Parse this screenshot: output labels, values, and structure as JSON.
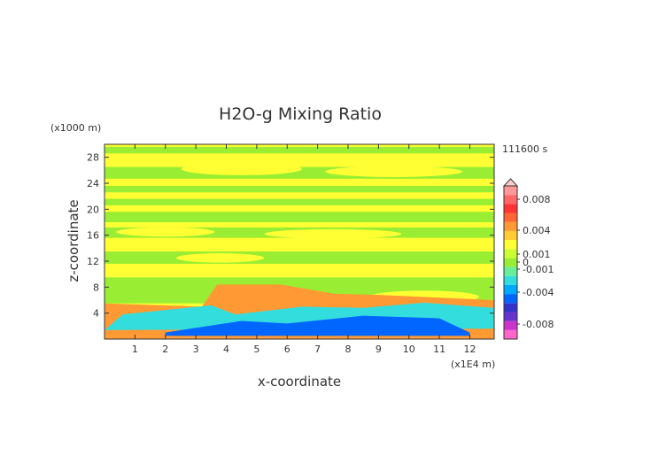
{
  "chart_data": {
    "type": "heatmap",
    "title": "H2O-g Mixing Ratio",
    "xlabel": "x-coordinate",
    "ylabel": "z-coordinate",
    "x_unit": "(x1E4 m)",
    "y_unit": "(x1000 m)",
    "time_label": "111600 s",
    "xlim": [
      0,
      12.8
    ],
    "ylim": [
      0,
      30
    ],
    "x_ticks": [
      "1",
      "2",
      "3",
      "4",
      "5",
      "6",
      "7",
      "8",
      "9",
      "10",
      "11",
      "12"
    ],
    "y_ticks": [
      "4",
      "8",
      "12",
      "16",
      "20",
      "24",
      "28"
    ],
    "colorbar": {
      "labels": [
        "0.008",
        "0.004",
        "0.001",
        "0",
        "-0.001",
        "-0.004",
        "-0.008"
      ],
      "colors": [
        "#ff66cc",
        "#cc33cc",
        "#6633cc",
        "#3333cc",
        "#0066ff",
        "#00aaff",
        "#33dddd",
        "#66ee99",
        "#99ee33",
        "#ccff33",
        "#ffff33",
        "#ffcc33",
        "#ff9933",
        "#ff6633",
        "#ff3333",
        "#ff6666",
        "#ff9999"
      ]
    },
    "fields": [
      {
        "color": "#ffff33",
        "region": "background"
      },
      {
        "color": "#99ee33",
        "region": "upper-bands"
      },
      {
        "color": "#ff9933",
        "region": "low-level-positive"
      },
      {
        "color": "#33dddd",
        "region": "low-level-negative"
      },
      {
        "color": "#0066ff",
        "region": "surface-negative"
      }
    ]
  }
}
